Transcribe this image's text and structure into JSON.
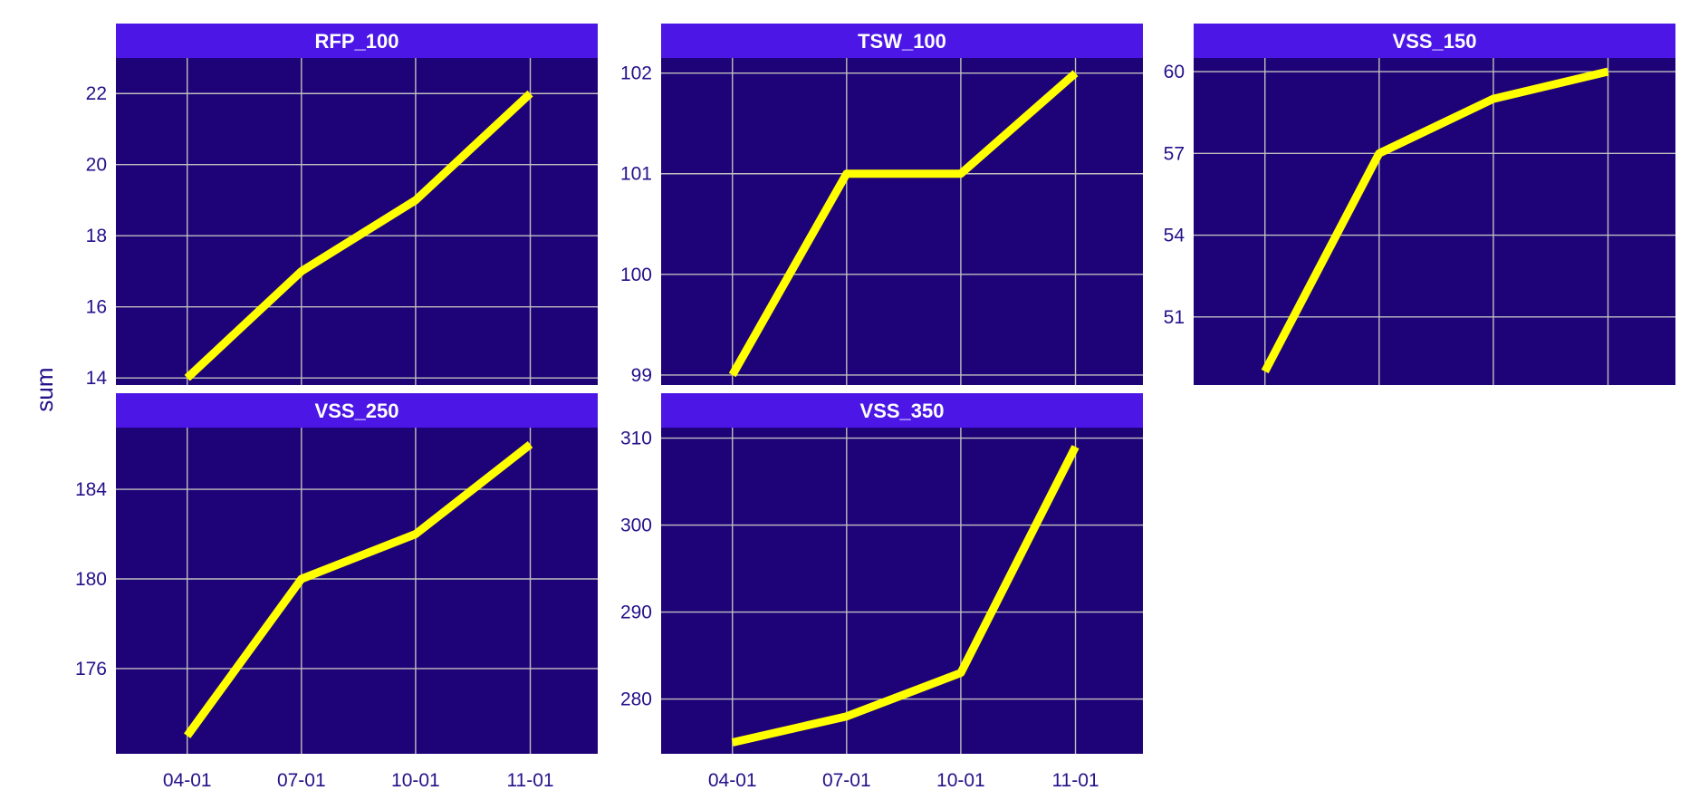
{
  "ylabel": "sum",
  "colors": {
    "panel_bg": "#1e0277",
    "strip_bg": "#4b16e6",
    "strip_text": "#ffffff",
    "grid": "#bfbfbf",
    "line": "#ffff00",
    "axis_text": "#26108a",
    "page_bg": "#ffffff"
  },
  "chart_data": {
    "type": "line",
    "x": [
      "04-01",
      "07-01",
      "10-01",
      "11-01"
    ],
    "xlabel": "",
    "ylabel": "sum",
    "grid": true,
    "facets": [
      {
        "name": "RFP_100",
        "values": [
          14,
          17,
          19,
          22
        ],
        "yticks": [
          14,
          16,
          18,
          20,
          22
        ],
        "ylim": [
          13.8,
          23.0
        ]
      },
      {
        "name": "TSW_100",
        "values": [
          99,
          101,
          101,
          102
        ],
        "yticks": [
          99,
          100,
          101,
          102
        ],
        "ylim": [
          98.9,
          102.15
        ]
      },
      {
        "name": "VSS_150",
        "values": [
          49,
          57,
          59,
          60
        ],
        "yticks": [
          51,
          54,
          57,
          60
        ],
        "ylim": [
          48.5,
          60.5
        ]
      },
      {
        "name": "VSS_250",
        "values": [
          173,
          180,
          182,
          186
        ],
        "yticks": [
          176,
          180,
          184
        ],
        "ylim": [
          172.2,
          186.75
        ]
      },
      {
        "name": "VSS_350",
        "values": [
          275,
          278,
          283,
          309
        ],
        "yticks": [
          280,
          290,
          300,
          310
        ],
        "ylim": [
          273.7,
          311.2
        ]
      }
    ]
  }
}
